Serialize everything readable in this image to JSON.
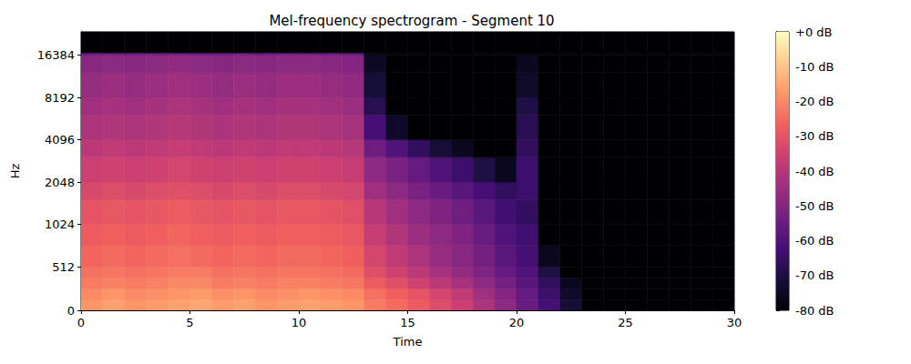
{
  "chart_data": {
    "type": "heatmap",
    "title": "Mel-frequency spectrogram - Segment 10",
    "x_label": "Time",
    "y_label": "Hz",
    "xlim": [
      0,
      30
    ],
    "xticks": [
      0,
      5,
      10,
      15,
      20,
      25,
      30
    ],
    "ylim": [
      0,
      24000
    ],
    "yticks": [
      0,
      512,
      1024,
      2048,
      4096,
      8192,
      16384
    ],
    "grid": false,
    "cells": {
      "x_edges": [
        0,
        1,
        2,
        3,
        4,
        5,
        6,
        7,
        8,
        9,
        10,
        11,
        12,
        13,
        14,
        15,
        16,
        17,
        18,
        19,
        20,
        21,
        22,
        23,
        24,
        25,
        26,
        27,
        28,
        29,
        30
      ],
      "y_edges": [
        0,
        128,
        256,
        384,
        512,
        768,
        1024,
        1536,
        2048,
        3072,
        4096,
        6144,
        8192,
        12288,
        16384,
        17000,
        24000
      ],
      "values": [
        [
          -18,
          -16,
          -18,
          -17,
          -16,
          -15,
          -17,
          -16,
          -18,
          -17,
          -16,
          -17,
          -18,
          -22,
          -25,
          -28,
          -32,
          -36,
          -42,
          -48,
          -55,
          -62,
          -72,
          -80,
          -80,
          -80,
          -80,
          -80,
          -80,
          -80
        ],
        [
          -20,
          -18,
          -20,
          -19,
          -18,
          -17,
          -19,
          -18,
          -20,
          -19,
          -18,
          -19,
          -20,
          -24,
          -27,
          -30,
          -34,
          -38,
          -44,
          -50,
          -56,
          -64,
          -74,
          -80,
          -80,
          -80,
          -80,
          -80,
          -80,
          -80
        ],
        [
          -22,
          -21,
          -22,
          -21,
          -20,
          -20,
          -22,
          -21,
          -22,
          -21,
          -21,
          -22,
          -23,
          -28,
          -31,
          -35,
          -39,
          -43,
          -48,
          -53,
          -58,
          -66,
          -76,
          -80,
          -80,
          -80,
          -80,
          -80,
          -80,
          -80
        ],
        [
          -24,
          -23,
          -24,
          -23,
          -22,
          -22,
          -24,
          -23,
          -24,
          -23,
          -23,
          -24,
          -25,
          -31,
          -35,
          -39,
          -43,
          -47,
          -51,
          -56,
          -60,
          -70,
          -80,
          -80,
          -80,
          -80,
          -80,
          -80,
          -80,
          -80
        ],
        [
          -26,
          -25,
          -26,
          -25,
          -24,
          -25,
          -26,
          -25,
          -26,
          -25,
          -25,
          -26,
          -27,
          -34,
          -38,
          -42,
          -46,
          -49,
          -53,
          -58,
          -62,
          -76,
          -80,
          -80,
          -80,
          -80,
          -80,
          -80,
          -80,
          -80
        ],
        [
          -28,
          -27,
          -28,
          -27,
          -26,
          -27,
          -28,
          -27,
          -28,
          -27,
          -27,
          -28,
          -29,
          -37,
          -41,
          -45,
          -48,
          -51,
          -55,
          -60,
          -63,
          -80,
          -80,
          -80,
          -80,
          -80,
          -80,
          -80,
          -80,
          -80
        ],
        [
          -30,
          -29,
          -30,
          -29,
          -28,
          -29,
          -30,
          -29,
          -30,
          -29,
          -29,
          -30,
          -31,
          -40,
          -44,
          -48,
          -51,
          -54,
          -58,
          -63,
          -66,
          -80,
          -80,
          -80,
          -80,
          -80,
          -80,
          -80,
          -80,
          -80
        ],
        [
          -33,
          -32,
          -33,
          -32,
          -31,
          -32,
          -33,
          -32,
          -33,
          -32,
          -32,
          -33,
          -34,
          -44,
          -48,
          -52,
          -55,
          -58,
          -62,
          -66,
          -64,
          -80,
          -80,
          -80,
          -80,
          -80,
          -80,
          -80,
          -80,
          -80
        ],
        [
          -36,
          -35,
          -36,
          -35,
          -34,
          -35,
          -36,
          -35,
          -36,
          -35,
          -35,
          -36,
          -37,
          -48,
          -52,
          -56,
          -60,
          -64,
          -70,
          -76,
          -64,
          -80,
          -80,
          -80,
          -80,
          -80,
          -80,
          -80,
          -80,
          -80
        ],
        [
          -39,
          -38,
          -39,
          -38,
          -37,
          -38,
          -39,
          -38,
          -39,
          -38,
          -38,
          -39,
          -40,
          -54,
          -60,
          -66,
          -72,
          -76,
          -80,
          -80,
          -66,
          -80,
          -80,
          -80,
          -80,
          -80,
          -80,
          -80,
          -80,
          -80
        ],
        [
          -42,
          -41,
          -42,
          -41,
          -40,
          -41,
          -42,
          -41,
          -42,
          -41,
          -41,
          -42,
          -43,
          -62,
          -74,
          -80,
          -80,
          -80,
          -80,
          -80,
          -68,
          -80,
          -80,
          -80,
          -80,
          -80,
          -80,
          -80,
          -80,
          -80
        ],
        [
          -44,
          -43,
          -44,
          -43,
          -42,
          -43,
          -44,
          -43,
          -44,
          -43,
          -43,
          -44,
          -45,
          -68,
          -80,
          -80,
          -80,
          -80,
          -80,
          -80,
          -70,
          -80,
          -80,
          -80,
          -80,
          -80,
          -80,
          -80,
          -80,
          -80
        ],
        [
          -46,
          -45,
          -46,
          -45,
          -44,
          -45,
          -46,
          -45,
          -46,
          -45,
          -45,
          -46,
          -47,
          -72,
          -80,
          -80,
          -80,
          -80,
          -80,
          -80,
          -74,
          -80,
          -80,
          -80,
          -80,
          -80,
          -80,
          -80,
          -80,
          -80
        ],
        [
          -49,
          -48,
          -49,
          -48,
          -47,
          -48,
          -49,
          -48,
          -49,
          -48,
          -48,
          -49,
          -50,
          -75,
          -80,
          -80,
          -80,
          -80,
          -80,
          -80,
          -76,
          -80,
          -80,
          -80,
          -80,
          -80,
          -80,
          -80,
          -80,
          -80
        ],
        [
          -56,
          -55,
          -56,
          -55,
          -55,
          -56,
          -56,
          -55,
          -56,
          -55,
          -55,
          -56,
          -57,
          -78,
          -80,
          -80,
          -80,
          -80,
          -80,
          -80,
          -80,
          -80,
          -80,
          -80,
          -80,
          -80,
          -80,
          -80,
          -80,
          -80
        ],
        [
          -80,
          -80,
          -80,
          -80,
          -80,
          -80,
          -80,
          -80,
          -80,
          -80,
          -80,
          -80,
          -80,
          -80,
          -80,
          -80,
          -80,
          -80,
          -80,
          -80,
          -80,
          -80,
          -80,
          -80,
          -80,
          -80,
          -80,
          -80,
          -80,
          -80
        ]
      ]
    },
    "colorbar": {
      "range": [
        -80,
        0
      ],
      "ticks": [
        {
          "value": 0,
          "label": "+0 dB"
        },
        {
          "value": -10,
          "label": "-10 dB"
        },
        {
          "value": -20,
          "label": "-20 dB"
        },
        {
          "value": -30,
          "label": "-30 dB"
        },
        {
          "value": -40,
          "label": "-40 dB"
        },
        {
          "value": -50,
          "label": "-50 dB"
        },
        {
          "value": -60,
          "label": "-60 dB"
        },
        {
          "value": -70,
          "label": "-70 dB"
        },
        {
          "value": -80,
          "label": "-80 dB"
        }
      ]
    }
  }
}
